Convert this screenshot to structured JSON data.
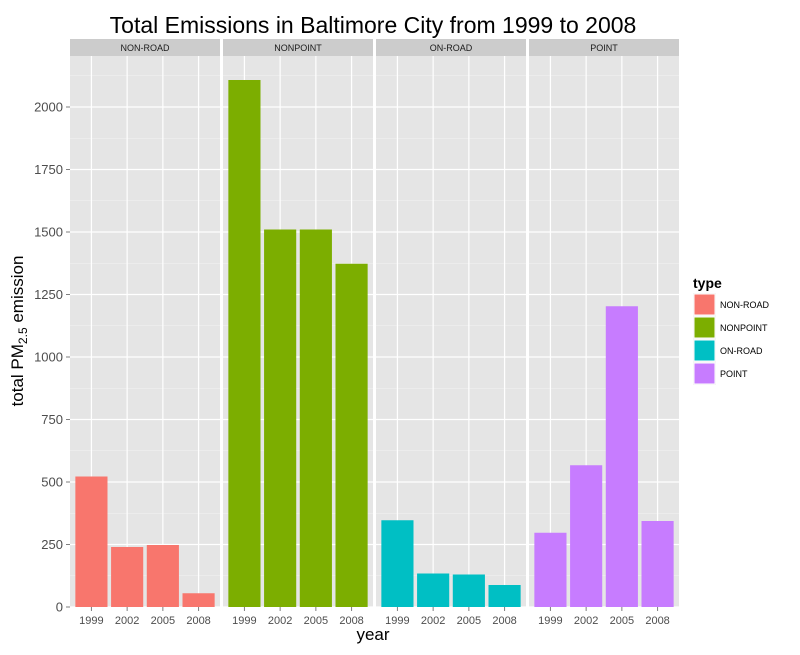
{
  "chart_data": {
    "type": "bar",
    "title": "Total Emissions in Baltimore City from 1999 to 2008",
    "xlabel": "year",
    "ylabel": {
      "prefix": "total PM",
      "subscript": "2.5",
      "suffix": " emission"
    },
    "ylim": [
      0,
      2200
    ],
    "yticks": [
      0,
      250,
      500,
      750,
      1000,
      1250,
      1500,
      1750,
      2000
    ],
    "categories": [
      "1999",
      "2002",
      "2005",
      "2008"
    ],
    "grid": true,
    "legend": {
      "title": "type",
      "position": "right"
    },
    "series": [
      {
        "name": "NON-ROAD",
        "color": "#F8766D",
        "values": [
          522,
          240,
          248,
          55
        ]
      },
      {
        "name": "NONPOINT",
        "color": "#7CAE00",
        "values": [
          2108,
          1510,
          1510,
          1373
        ]
      },
      {
        "name": "ON-ROAD",
        "color": "#00BFC4",
        "values": [
          347,
          134,
          130,
          88
        ]
      },
      {
        "name": "POINT",
        "color": "#C77CFF",
        "values": [
          297,
          567,
          1203,
          344
        ]
      }
    ]
  }
}
